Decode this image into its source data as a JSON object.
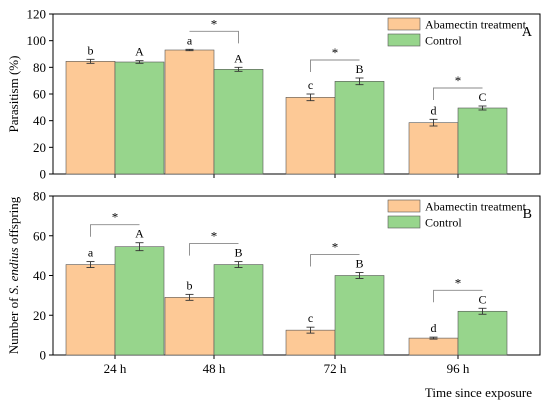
{
  "colors": {
    "abamectin": "#FDC996",
    "control": "#97D58C",
    "bracket": "#888888",
    "axis": "#000000"
  },
  "chart_data": [
    {
      "type": "bar",
      "panel_label": "A",
      "ylabel": "Parasitism (%)",
      "ylim": [
        0,
        120
      ],
      "yticks": [
        0,
        20,
        40,
        60,
        80,
        100,
        120
      ],
      "categories": [
        "24 h",
        "48 h",
        "72 h",
        "96 h"
      ],
      "legend": {
        "position": "top-right"
      },
      "series": [
        {
          "name": "Abamectin treatment",
          "color_key": "abamectin",
          "values": [
            84.5,
            93,
            57.5,
            38.5
          ],
          "errors": [
            1.5,
            0.5,
            2.5,
            2.5
          ],
          "letters": [
            "b",
            "a",
            "c",
            "d"
          ]
        },
        {
          "name": "Control",
          "color_key": "control",
          "values": [
            84,
            78.5,
            69.5,
            49.5
          ],
          "errors": [
            1,
            1.5,
            2.5,
            1.5
          ],
          "letters": [
            "A",
            "A",
            "B",
            "C"
          ]
        }
      ],
      "significance": [
        {
          "category": 1,
          "label": "*"
        },
        {
          "category": 2,
          "label": "*"
        },
        {
          "category": 3,
          "label": "*"
        }
      ]
    },
    {
      "type": "bar",
      "panel_label": "B",
      "ylabel_parts": [
        "Number of ",
        "S. endius",
        " offspring"
      ],
      "ylim": [
        0,
        80
      ],
      "yticks": [
        0,
        20,
        40,
        60,
        80
      ],
      "categories": [
        "24 h",
        "48 h",
        "72 h",
        "96 h"
      ],
      "xlabel": "Time since exposure",
      "legend": {
        "position": "top-right"
      },
      "series": [
        {
          "name": "Abamectin treatment",
          "color_key": "abamectin",
          "values": [
            45.5,
            29,
            12.5,
            8.5
          ],
          "errors": [
            1.5,
            1.5,
            1.5,
            0.5
          ],
          "letters": [
            "a",
            "b",
            "c",
            "d"
          ]
        },
        {
          "name": "Control",
          "color_key": "control",
          "values": [
            54.5,
            45.5,
            40,
            22
          ],
          "errors": [
            2,
            1.5,
            1.5,
            1.5
          ],
          "letters": [
            "A",
            "B",
            "B",
            "C"
          ]
        }
      ],
      "significance": [
        {
          "category": 0,
          "label": "*"
        },
        {
          "category": 1,
          "label": "*"
        },
        {
          "category": 2,
          "label": "*"
        },
        {
          "category": 3,
          "label": "*"
        }
      ]
    }
  ]
}
